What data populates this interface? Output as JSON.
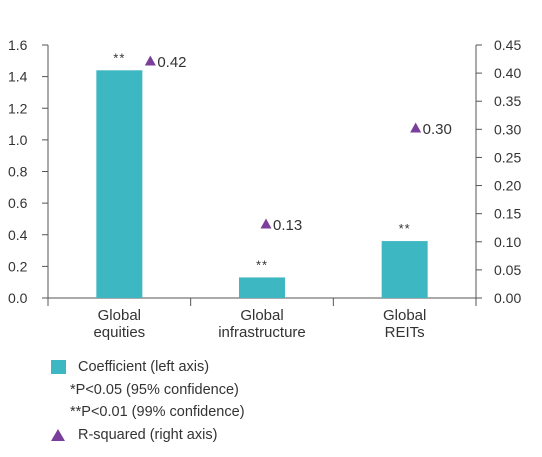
{
  "chart_data": {
    "type": "bar",
    "categories": [
      [
        "Global",
        "equities"
      ],
      [
        "Global",
        "infrastructure"
      ],
      [
        "Global",
        "REITs"
      ]
    ],
    "series": [
      {
        "name": "Coefficient (left axis)",
        "axis": "left",
        "values": [
          1.44,
          0.13,
          0.36
        ],
        "significance": [
          "**",
          "**",
          "**"
        ]
      },
      {
        "name": "R-squared (right axis)",
        "axis": "right",
        "marker": "triangle",
        "values": [
          0.42,
          0.13,
          0.3
        ],
        "labels": [
          "0.42",
          "0.13",
          "0.30"
        ]
      }
    ],
    "left_axis": {
      "ylim": [
        0,
        1.6
      ],
      "ticks": [
        "0.0",
        "0.2",
        "0.4",
        "0.6",
        "0.8",
        "1.0",
        "1.2",
        "1.4",
        "1.6"
      ]
    },
    "right_axis": {
      "ylim": [
        0,
        0.45
      ],
      "ticks": [
        "0.00",
        "0.05",
        "0.10",
        "0.15",
        "0.20",
        "0.25",
        "0.30",
        "0.35",
        "0.40",
        "0.45"
      ]
    },
    "grid": false,
    "legend_placement": "bottom-left",
    "legend": {
      "coefficient": "Coefficient (left axis)",
      "p05": "*P<0.05 (95% confidence)",
      "p01": "**P<0.01 (99% confidence)",
      "rsquared": "R-squared (right axis)"
    },
    "colors": {
      "bar": "#3db7c1",
      "marker": "#7a3f9a",
      "axis": "#555555",
      "text": "#333333"
    }
  }
}
